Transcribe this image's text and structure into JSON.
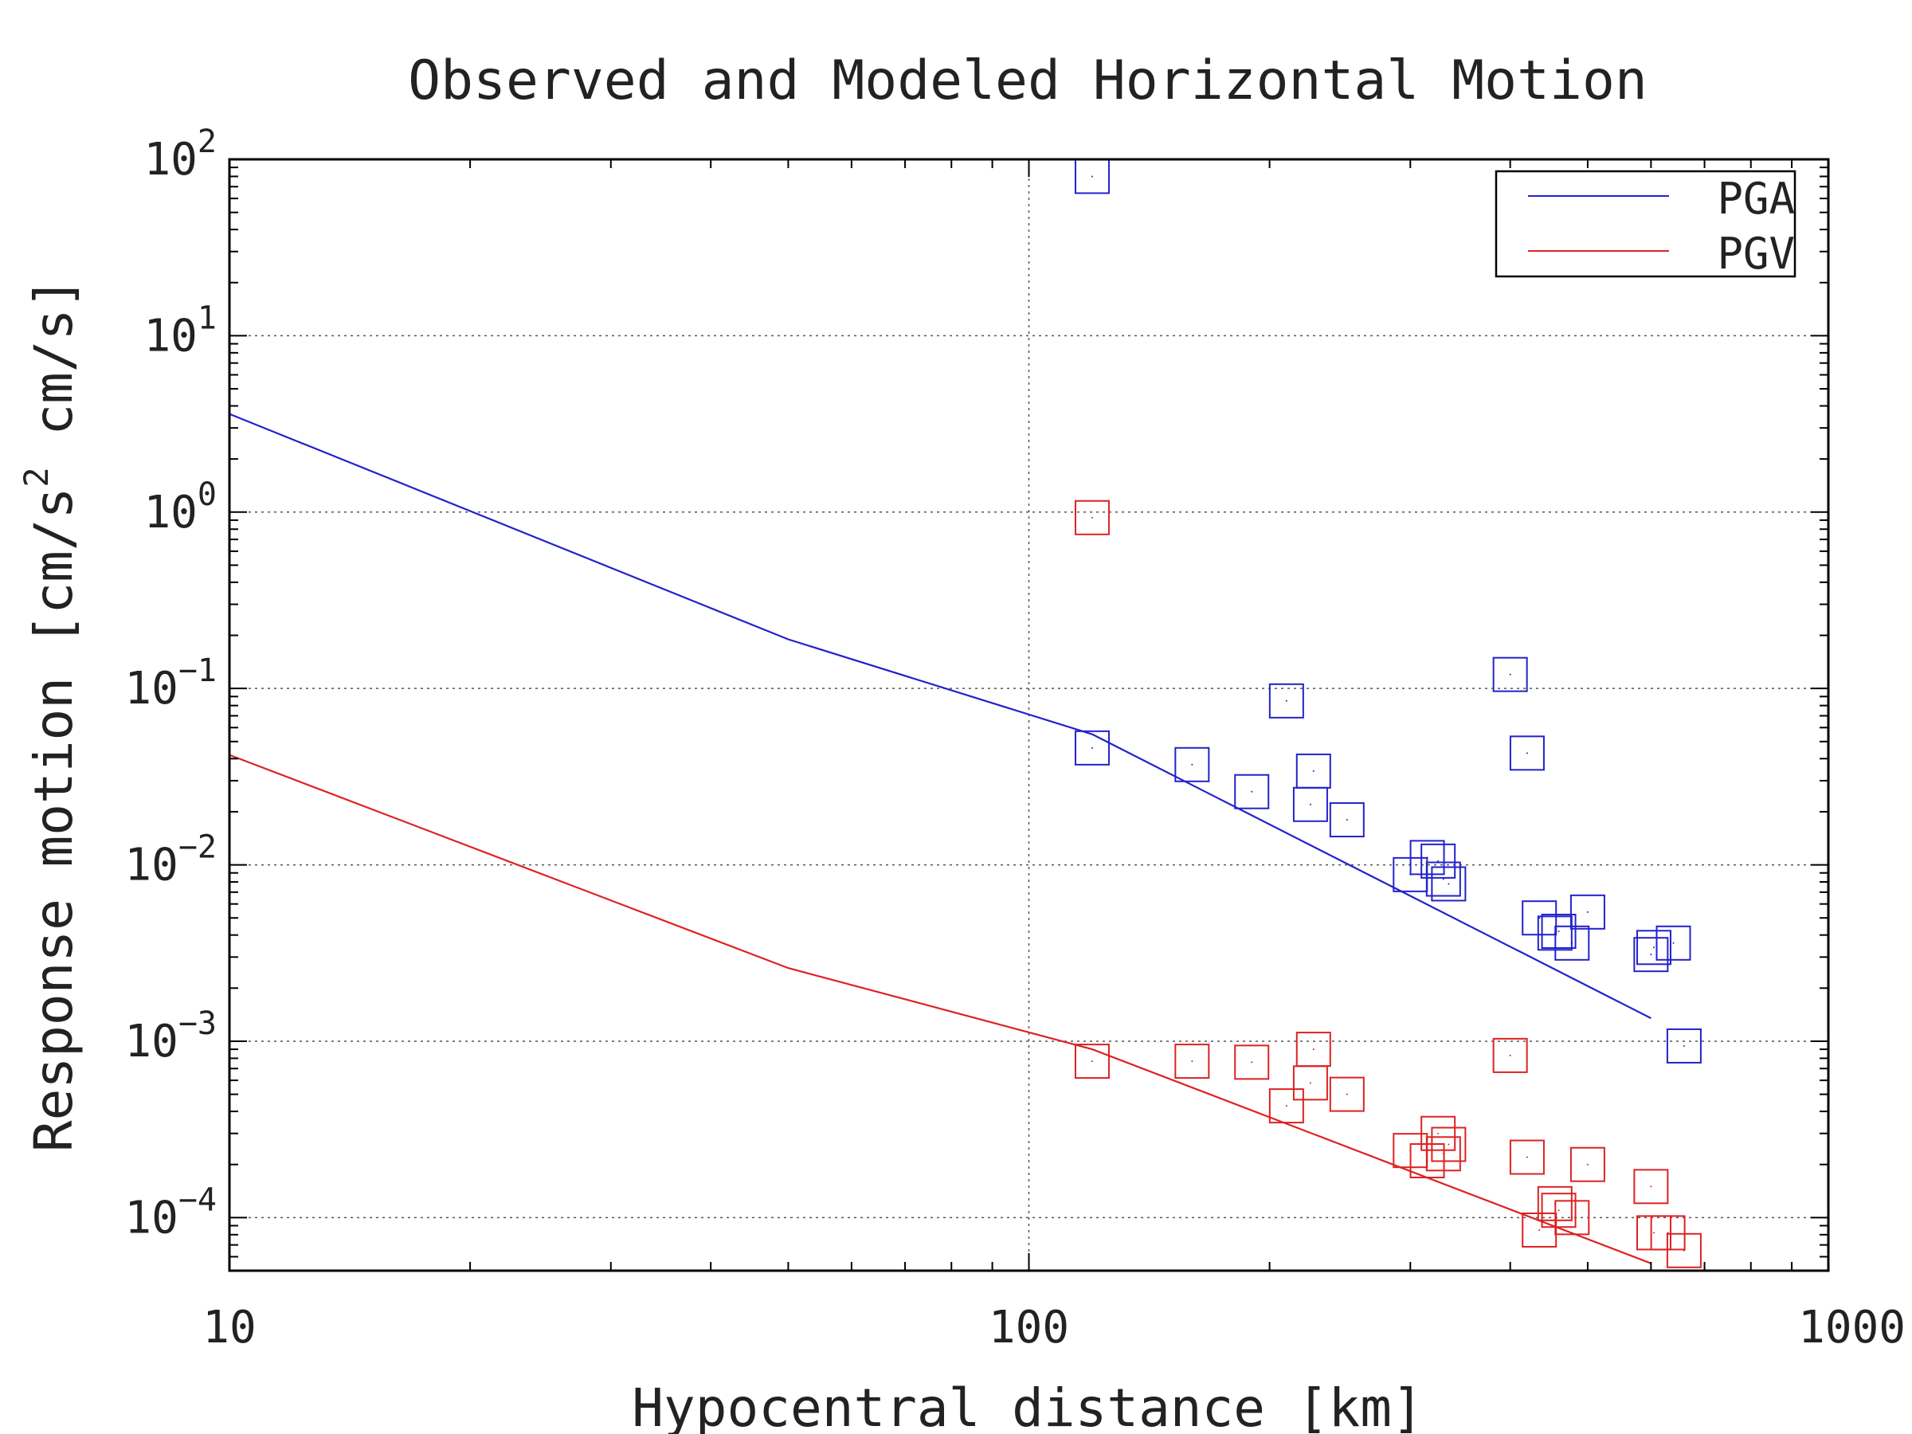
{
  "chart_data": {
    "type": "scatter",
    "title": "Observed and Modeled Horizontal Motion",
    "xlabel": "Hypocentral distance [km]",
    "ylabel_parts": {
      "prefix": "Response motion [cm/s",
      "superscript": "2",
      "suffix": "  cm/s]"
    },
    "x_scale": "log",
    "y_scale": "log",
    "xlim": [
      10,
      1000
    ],
    "ylim": [
      5e-05,
      100
    ],
    "x_ticks": [
      {
        "value": 10,
        "label": "10"
      },
      {
        "value": 100,
        "label": "100"
      },
      {
        "value": 1000,
        "label": "1000"
      }
    ],
    "y_ticks": [
      {
        "value": 100,
        "base": "10",
        "exp": "2"
      },
      {
        "value": 10,
        "base": "10",
        "exp": "1"
      },
      {
        "value": 1,
        "base": "10",
        "exp": "0"
      },
      {
        "value": 0.1,
        "base": "10",
        "exp": "−1"
      },
      {
        "value": 0.01,
        "base": "10",
        "exp": "−2"
      },
      {
        "value": 0.001,
        "base": "10",
        "exp": "−3"
      },
      {
        "value": 0.0001,
        "base": "10",
        "exp": "−4"
      }
    ],
    "grid": true,
    "legend_position": "top-right",
    "series": [
      {
        "name": "PGA",
        "color": "#2222cc",
        "model_line": [
          [
            10,
            3.6
          ],
          [
            50,
            0.19
          ],
          [
            120,
            0.055
          ],
          [
            600,
            0.00135
          ]
        ],
        "observed": [
          [
            120,
            80
          ],
          [
            120,
            0.046
          ],
          [
            160,
            0.037
          ],
          [
            190,
            0.026
          ],
          [
            210,
            0.085
          ],
          [
            225,
            0.022
          ],
          [
            227,
            0.034
          ],
          [
            250,
            0.018
          ],
          [
            300,
            0.0088
          ],
          [
            315,
            0.011
          ],
          [
            325,
            0.0105
          ],
          [
            330,
            0.0083
          ],
          [
            335,
            0.0078
          ],
          [
            400,
            0.12
          ],
          [
            420,
            0.043
          ],
          [
            435,
            0.005
          ],
          [
            455,
            0.0041
          ],
          [
            460,
            0.0042
          ],
          [
            478,
            0.0036
          ],
          [
            500,
            0.0054
          ],
          [
            600,
            0.0031
          ],
          [
            605,
            0.0034
          ],
          [
            640,
            0.0036
          ],
          [
            660,
            0.00094
          ]
        ]
      },
      {
        "name": "PGV",
        "color": "#dd2222",
        "model_line": [
          [
            10,
            0.042
          ],
          [
            50,
            0.0026
          ],
          [
            120,
            0.0009
          ],
          [
            600,
            5.5e-05
          ]
        ],
        "observed": [
          [
            120,
            0.93
          ],
          [
            120,
            0.00077
          ],
          [
            160,
            0.00077
          ],
          [
            190,
            0.00076
          ],
          [
            210,
            0.00043
          ],
          [
            225,
            0.00058
          ],
          [
            227,
            0.0009
          ],
          [
            250,
            0.0005
          ],
          [
            300,
            0.00024
          ],
          [
            315,
            0.00021
          ],
          [
            325,
            0.0003
          ],
          [
            330,
            0.00023
          ],
          [
            335,
            0.00026
          ],
          [
            400,
            0.00083
          ],
          [
            420,
            0.00022
          ],
          [
            435,
            8.5e-05
          ],
          [
            455,
            0.00012
          ],
          [
            460,
            0.00011
          ],
          [
            478,
            0.0001
          ],
          [
            500,
            0.0002
          ],
          [
            600,
            0.00015
          ],
          [
            605,
            8.2e-05
          ],
          [
            630,
            8.2e-05
          ],
          [
            660,
            6.5e-05
          ]
        ]
      }
    ]
  }
}
